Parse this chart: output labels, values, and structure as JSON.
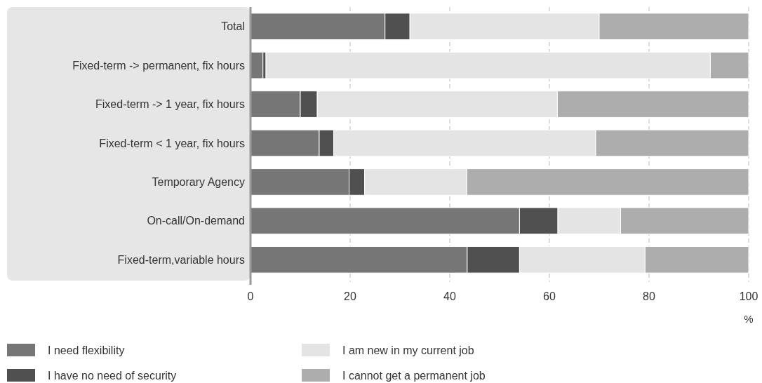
{
  "chart_data": {
    "type": "bar",
    "orientation": "horizontal",
    "stacked": true,
    "categories": [
      "Total",
      "Fixed-term -> permanent, fix hours",
      "Fixed-term -> 1 year, fix hours",
      "Fixed-term < 1 year, fix hours",
      "Temporary Agency",
      "On-call/On-demand",
      "Fixed-term,variable hours"
    ],
    "series": [
      {
        "name": "I need flexibility",
        "color": "#767676",
        "values": [
          27,
          2.5,
          10,
          13.8,
          19.8,
          54,
          43.5
        ]
      },
      {
        "name": "I have no need of security",
        "color": "#505050",
        "values": [
          5,
          0.6,
          3.4,
          2.9,
          3.1,
          7.7,
          10.5
        ]
      },
      {
        "name": "I am new in my current job",
        "color": "#e4e4e4",
        "values": [
          38,
          89.2,
          48.2,
          52.6,
          20.5,
          12.6,
          25.2
        ]
      },
      {
        "name": "I cannot get a permanent job",
        "color": "#adadad",
        "values": [
          30,
          7.7,
          38.4,
          30.7,
          56.6,
          25.7,
          20.8
        ]
      }
    ],
    "xlim": [
      0,
      100
    ],
    "xticks": [
      0,
      20,
      40,
      60,
      80,
      100
    ],
    "xlabel": "%",
    "grid": "x",
    "legend": "bottom"
  }
}
